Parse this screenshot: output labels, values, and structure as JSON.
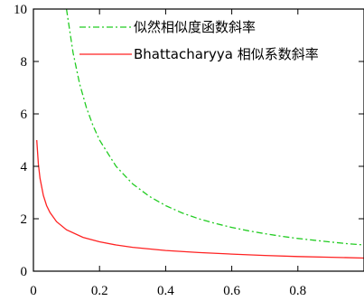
{
  "chart_data": {
    "type": "line",
    "title": "",
    "xlabel": "",
    "ylabel": "",
    "xlim": [
      0,
      1
    ],
    "ylim": [
      0,
      10
    ],
    "x_ticks": [
      0,
      0.2,
      0.4,
      0.6,
      0.8
    ],
    "x_tick_labels": [
      "0",
      "0.2",
      "0.4",
      "0.6",
      "0.8"
    ],
    "y_ticks": [
      0,
      2,
      4,
      6,
      8,
      10
    ],
    "y_tick_labels": [
      "0",
      "2",
      "4",
      "6",
      "8",
      "10"
    ],
    "grid": false,
    "legend_position": "top-right",
    "series": [
      {
        "name": "似然相似度函数斜率",
        "color": "#22cc22",
        "style": "dash-dot",
        "x": [
          0.1,
          0.12,
          0.14,
          0.16,
          0.18,
          0.2,
          0.25,
          0.3,
          0.35,
          0.4,
          0.45,
          0.5,
          0.55,
          0.6,
          0.65,
          0.7,
          0.75,
          0.8,
          0.85,
          0.9,
          0.95,
          1.0
        ],
        "y": [
          10.0,
          8.33,
          7.14,
          6.25,
          5.56,
          5.0,
          4.0,
          3.33,
          2.86,
          2.5,
          2.22,
          2.0,
          1.82,
          1.67,
          1.54,
          1.43,
          1.33,
          1.25,
          1.18,
          1.11,
          1.05,
          1.0
        ]
      },
      {
        "name": "Bhattacharyya 相似系数斜率",
        "color": "#ff2222",
        "style": "solid",
        "x": [
          0.01,
          0.015,
          0.02,
          0.03,
          0.04,
          0.05,
          0.07,
          0.1,
          0.15,
          0.2,
          0.25,
          0.3,
          0.4,
          0.5,
          0.6,
          0.7,
          0.8,
          0.9,
          1.0
        ],
        "y": [
          5.0,
          4.08,
          3.54,
          2.89,
          2.5,
          2.24,
          1.89,
          1.58,
          1.29,
          1.12,
          1.0,
          0.91,
          0.79,
          0.71,
          0.65,
          0.6,
          0.56,
          0.53,
          0.5
        ]
      }
    ]
  }
}
